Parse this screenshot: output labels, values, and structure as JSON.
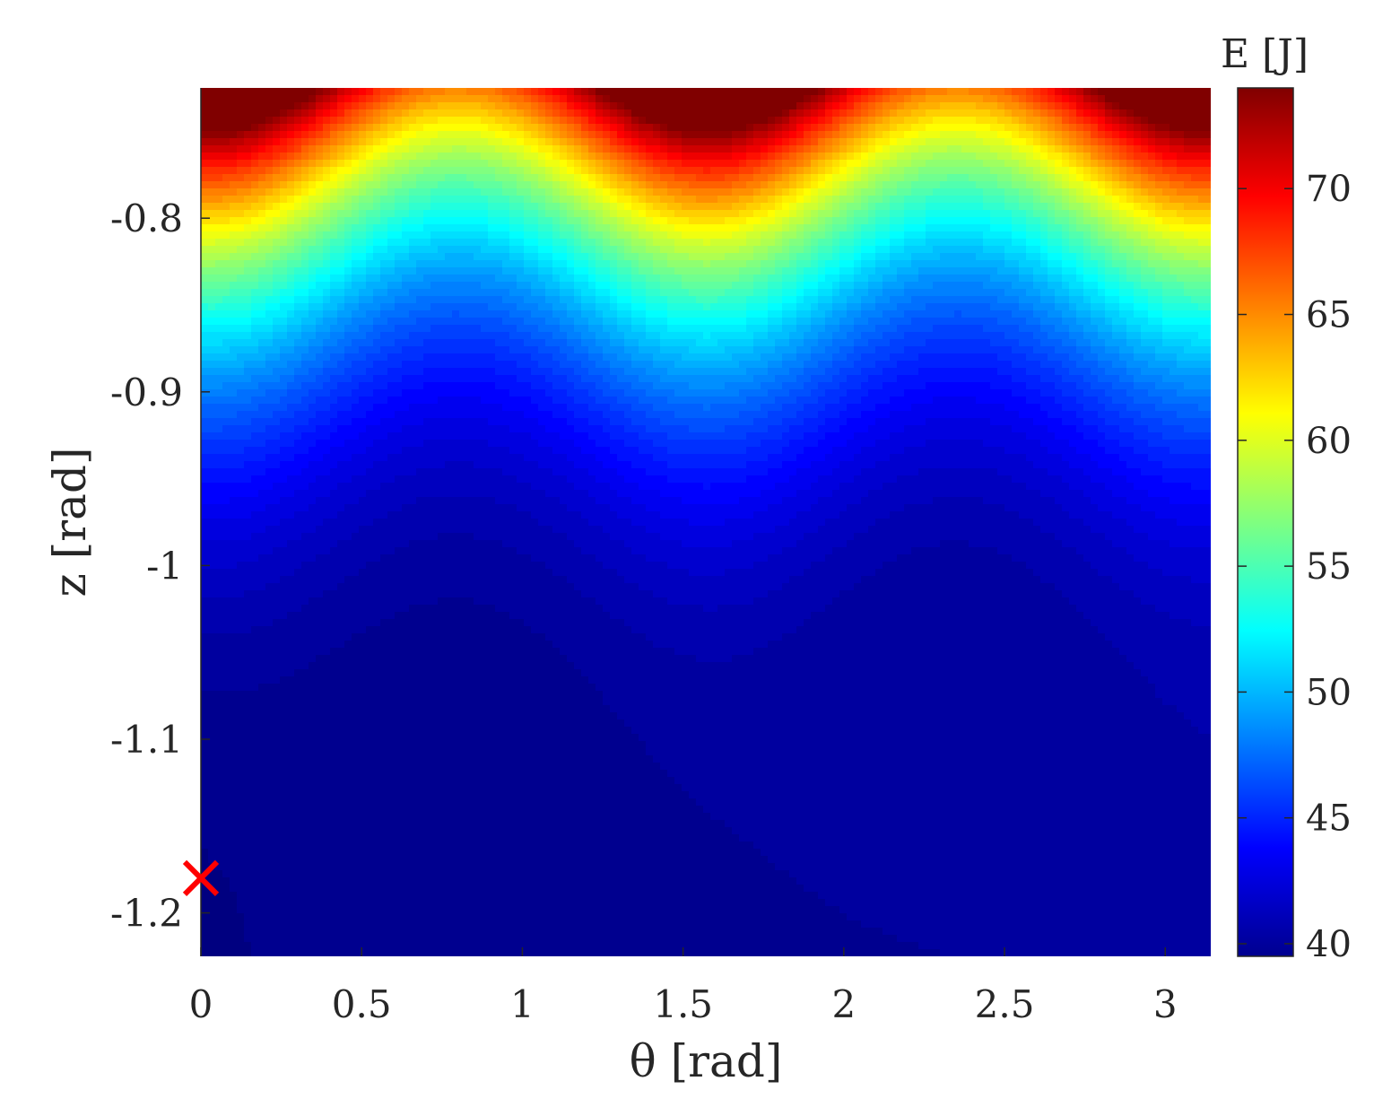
{
  "chart_data": {
    "type": "heatmap",
    "title": "",
    "xlabel": "θ [rad]",
    "ylabel": "z [rad]",
    "xlim": [
      0,
      3.1416
    ],
    "ylim": [
      -1.225,
      -0.725
    ],
    "xticks": [
      0,
      0.5,
      1,
      1.5,
      2,
      2.5,
      3
    ],
    "xtick_labels": [
      "0",
      "0.5",
      "1",
      "1.5",
      "2",
      "2.5",
      "3"
    ],
    "yticks": [
      -0.8,
      -0.9,
      -1,
      -1.1,
      -1.2
    ],
    "ytick_labels": [
      "-0.8",
      "-0.9",
      "-1",
      "-1.1",
      "-1.2"
    ],
    "colorbar": {
      "label": "E [J]",
      "range": [
        39.5,
        74
      ],
      "ticks": [
        40,
        45,
        50,
        55,
        60,
        65,
        70
      ],
      "tick_labels": [
        "40",
        "45",
        "50",
        "55",
        "60",
        "65",
        "70"
      ],
      "colormap": "jet"
    },
    "minimum_marker": {
      "x": 0,
      "y": -1.18,
      "symbol": "x",
      "color": "#ff0000"
    },
    "grid": false,
    "legend": "none"
  }
}
